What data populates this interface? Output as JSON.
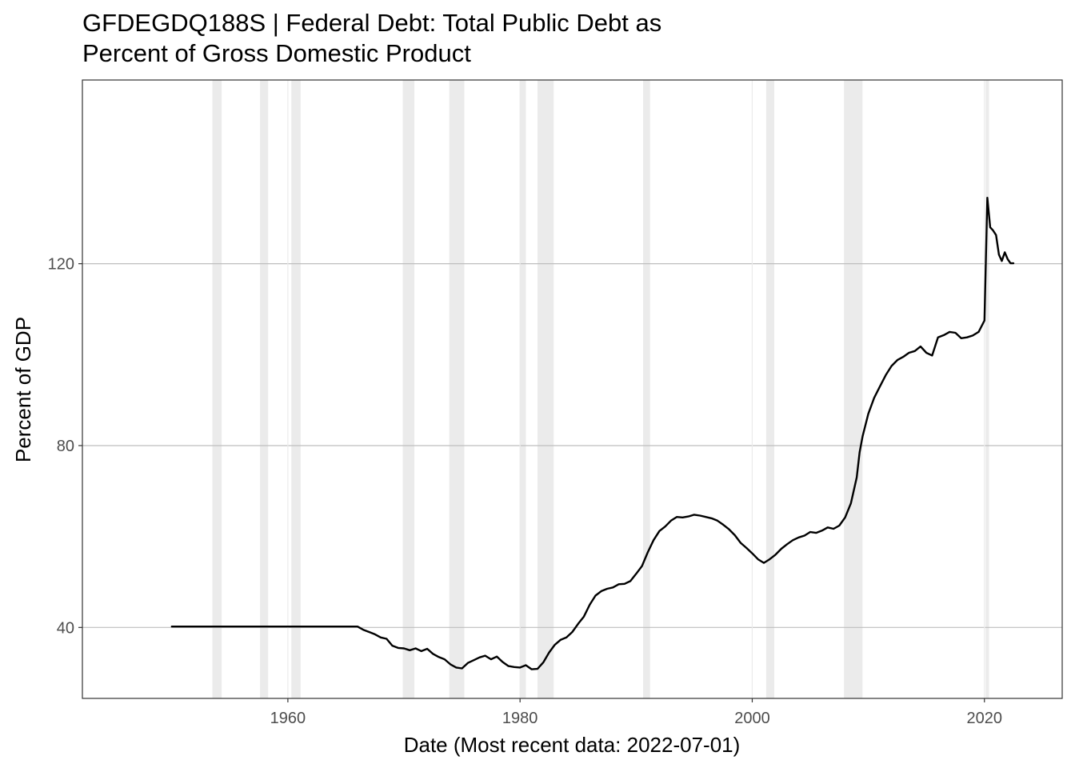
{
  "chart_data": {
    "type": "line",
    "title_line1": "GFDEGDQ188S | Federal Debt: Total Public Debt as",
    "title_line2": "Percent of Gross Domestic Product",
    "xlabel": "Date (Most recent data: 2022-07-01)",
    "ylabel": "Percent of GDP",
    "xlim": [
      1942.3,
      2026.7
    ],
    "ylim": [
      24.4,
      160.4
    ],
    "x_ticks": [
      {
        "value": 1960,
        "label": "1960"
      },
      {
        "value": 1980,
        "label": "1980"
      },
      {
        "value": 2000,
        "label": "2000"
      },
      {
        "value": 2020,
        "label": "2020"
      }
    ],
    "y_ticks": [
      {
        "value": 40,
        "label": "40"
      },
      {
        "value": 80,
        "label": "80"
      },
      {
        "value": 120,
        "label": "120"
      }
    ],
    "grid": true,
    "line_color": "#000000",
    "recession_color": "#ebebeb",
    "gridline_color": "#bebebe",
    "recessions": [
      [
        1953.5,
        1954.3
      ],
      [
        1957.6,
        1958.3
      ],
      [
        1960.3,
        1961.1
      ],
      [
        1969.9,
        1970.9
      ],
      [
        1973.9,
        1975.2
      ],
      [
        1980.0,
        1980.5
      ],
      [
        1981.5,
        1982.9
      ],
      [
        1990.6,
        1991.2
      ],
      [
        2001.2,
        2001.9
      ],
      [
        2007.9,
        2009.5
      ],
      [
        2020.1,
        2020.4
      ]
    ],
    "series": [
      {
        "x": [
          "1950-01-01",
          "1966-01-01",
          "1966-07-01",
          "1967-01-01",
          "1967-07-01",
          "1968-01-01",
          "1968-07-01",
          "1969-01-01",
          "1969-07-01",
          "1970-01-01",
          "1970-07-01",
          "1971-01-01",
          "1971-07-01",
          "1972-01-01",
          "1972-07-01",
          "1973-01-01",
          "1973-07-01",
          "1974-01-01",
          "1974-07-01",
          "1975-01-01",
          "1975-07-01",
          "1976-01-01",
          "1976-07-01",
          "1977-01-01",
          "1977-07-01",
          "1978-01-01",
          "1978-07-01",
          "1979-01-01",
          "1979-07-01",
          "1980-01-01",
          "1980-07-01",
          "1981-01-01",
          "1981-07-01",
          "1982-01-01",
          "1982-07-01",
          "1983-01-01",
          "1983-07-01",
          "1984-01-01",
          "1984-07-01",
          "1985-01-01",
          "1985-07-01",
          "1986-01-01",
          "1986-07-01",
          "1987-01-01",
          "1987-07-01",
          "1988-01-01",
          "1988-07-01",
          "1989-01-01",
          "1989-07-01",
          "1990-01-01",
          "1990-07-01",
          "1991-01-01",
          "1991-07-01",
          "1992-01-01",
          "1992-07-01",
          "1993-01-01",
          "1993-07-01",
          "1994-01-01",
          "1994-07-01",
          "1995-01-01",
          "1995-07-01",
          "1996-01-01",
          "1996-07-01",
          "1997-01-01",
          "1997-07-01",
          "1998-01-01",
          "1998-07-01",
          "1999-01-01",
          "1999-07-01",
          "2000-01-01",
          "2000-07-01",
          "2001-01-01",
          "2001-07-01",
          "2002-01-01",
          "2002-07-01",
          "2003-01-01",
          "2003-07-01",
          "2004-01-01",
          "2004-07-01",
          "2005-01-01",
          "2005-07-01",
          "2006-01-01",
          "2006-07-01",
          "2007-01-01",
          "2007-07-01",
          "2008-01-01",
          "2008-07-01",
          "2009-01-01",
          "2009-04-01",
          "2009-07-01",
          "2010-01-01",
          "2010-07-01",
          "2011-01-01",
          "2011-07-01",
          "2012-01-01",
          "2012-07-01",
          "2013-01-01",
          "2013-07-01",
          "2014-01-01",
          "2014-07-01",
          "2015-01-01",
          "2015-07-01",
          "2016-01-01",
          "2016-07-01",
          "2017-01-01",
          "2017-07-01",
          "2018-01-01",
          "2018-07-01",
          "2019-01-01",
          "2019-07-01",
          "2020-01-01",
          "2020-04-01",
          "2020-07-01",
          "2020-10-01",
          "2021-01-01",
          "2021-04-01",
          "2021-07-01",
          "2021-10-01",
          "2022-01-01",
          "2022-04-01",
          "2022-07-01"
        ],
        "y": [
          40.2,
          40.2,
          39.5,
          39.0,
          38.5,
          37.8,
          37.5,
          36.0,
          35.5,
          35.4,
          35.0,
          35.4,
          34.8,
          35.3,
          34.2,
          33.5,
          33.0,
          31.9,
          31.2,
          31.0,
          32.2,
          32.8,
          33.4,
          33.8,
          33.0,
          33.6,
          32.4,
          31.5,
          31.3,
          31.2,
          31.7,
          30.8,
          30.9,
          32.3,
          34.5,
          36.2,
          37.3,
          37.8,
          39.0,
          40.8,
          42.4,
          45.0,
          47.0,
          48.0,
          48.5,
          48.8,
          49.5,
          49.6,
          50.2,
          51.8,
          53.5,
          56.5,
          59.2,
          61.2,
          62.2,
          63.5,
          64.3,
          64.2,
          64.4,
          64.8,
          64.6,
          64.3,
          64.0,
          63.5,
          62.6,
          61.6,
          60.3,
          58.6,
          57.5,
          56.3,
          55.0,
          54.2,
          55.0,
          56.0,
          57.3,
          58.3,
          59.2,
          59.8,
          60.2,
          61.0,
          60.8,
          61.3,
          62.0,
          61.7,
          62.4,
          64.2,
          67.3,
          73.0,
          78.5,
          82.0,
          87.0,
          90.5,
          93.0,
          95.5,
          97.5,
          98.8,
          99.5,
          100.4,
          100.8,
          101.8,
          100.4,
          99.8,
          103.8,
          104.3,
          105.0,
          104.8,
          103.6,
          103.8,
          104.2,
          105.0,
          107.5,
          134.5,
          128.0,
          127.3,
          126.3,
          122.0,
          120.6,
          122.5,
          121.0,
          120.1,
          120.1
        ]
      }
    ]
  }
}
